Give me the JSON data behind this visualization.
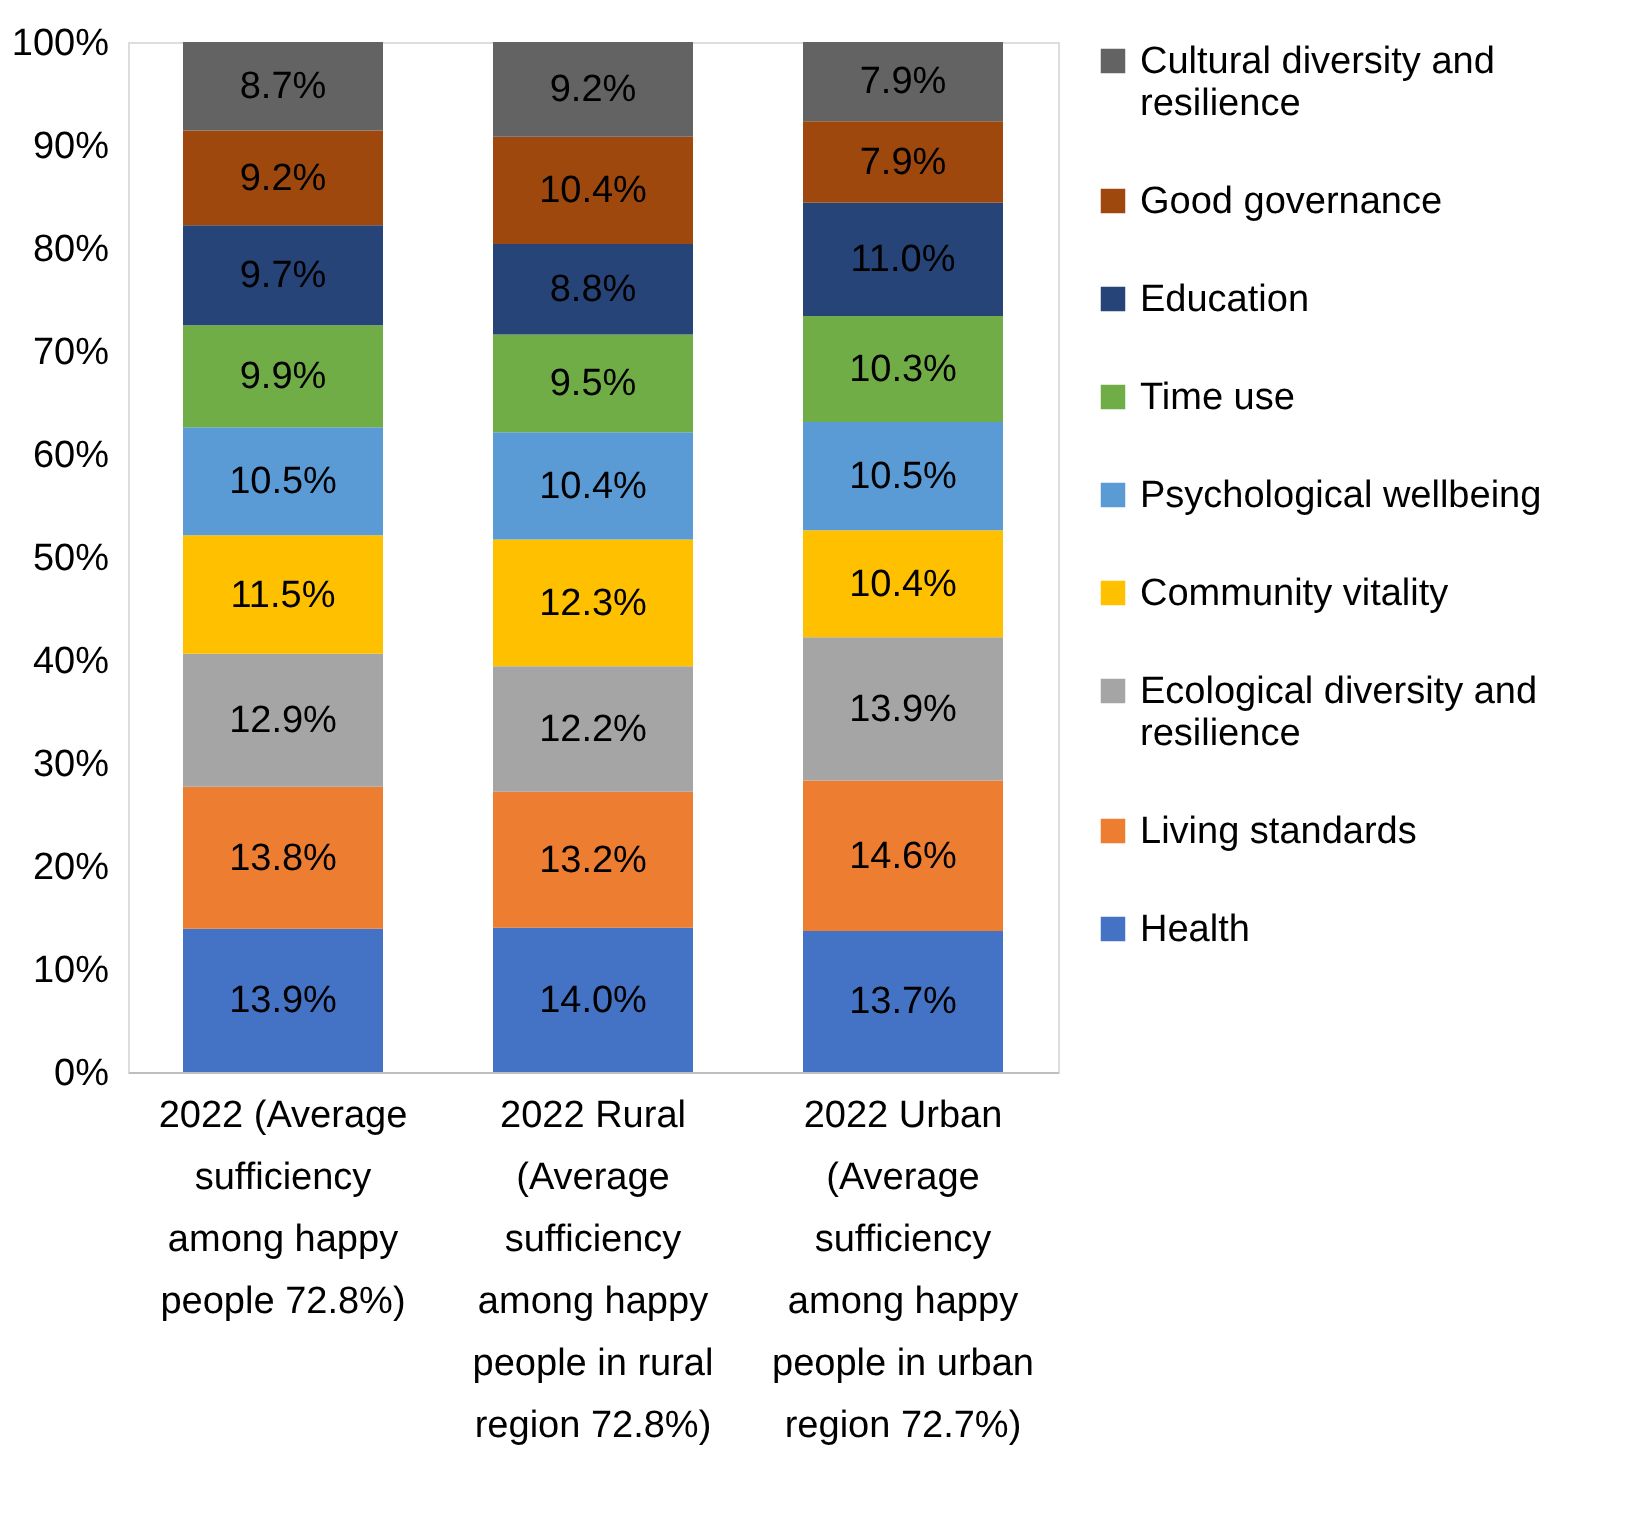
{
  "chart_data": {
    "type": "bar",
    "stacked": true,
    "categories": [
      "2022 (Average sufficiency among happy people 72.8%)",
      "2022 Rural (Average sufficiency among happy people in rural region 72.8%)",
      "2022 Urban (Average sufficiency among happy people in urban region 72.7%)"
    ],
    "series": [
      {
        "name": "Health",
        "color": "#4472c4",
        "values": [
          13.9,
          14.0,
          13.7
        ],
        "value_labels": [
          "13.9%",
          "14.0%",
          "13.7%"
        ]
      },
      {
        "name": "Living standards",
        "color": "#ed7d31",
        "values": [
          13.8,
          13.2,
          14.6
        ],
        "value_labels": [
          "13.8%",
          "13.2%",
          "14.6%"
        ]
      },
      {
        "name": "Ecological diversity and resilience",
        "color": "#a5a5a5",
        "values": [
          12.9,
          12.2,
          13.9
        ],
        "value_labels": [
          "12.9%",
          "12.2%",
          "13.9%"
        ]
      },
      {
        "name": "Community vitality",
        "color": "#ffc000",
        "values": [
          11.5,
          12.3,
          10.4
        ],
        "value_labels": [
          "11.5%",
          "12.3%",
          "10.4%"
        ]
      },
      {
        "name": "Psychological wellbeing",
        "color": "#5b9bd5",
        "values": [
          10.5,
          10.4,
          10.5
        ],
        "value_labels": [
          "10.5%",
          "10.4%",
          "10.5%"
        ]
      },
      {
        "name": "Time use",
        "color": "#70ad47",
        "values": [
          9.9,
          9.5,
          10.3
        ],
        "value_labels": [
          "9.9%",
          "9.5%",
          "10.3%"
        ]
      },
      {
        "name": "Education",
        "color": "#264478",
        "values": [
          9.7,
          8.8,
          11.0
        ],
        "value_labels": [
          "9.7%",
          "8.8%",
          "11.0%"
        ]
      },
      {
        "name": "Good governance",
        "color": "#9e480e",
        "values": [
          9.2,
          10.4,
          7.9
        ],
        "value_labels": [
          "9.2%",
          "10.4%",
          "7.9%"
        ]
      },
      {
        "name": "Cultural diversity and resilience",
        "color": "#636363",
        "values": [
          8.7,
          9.2,
          7.9
        ],
        "value_labels": [
          "8.7%",
          "9.2%",
          "7.9%"
        ]
      }
    ],
    "ylim": [
      0,
      100
    ],
    "yticks": [
      {
        "value": 0,
        "label": "0%"
      },
      {
        "value": 10,
        "label": "10%"
      },
      {
        "value": 20,
        "label": "20%"
      },
      {
        "value": 30,
        "label": "30%"
      },
      {
        "value": 40,
        "label": "40%"
      },
      {
        "value": 50,
        "label": "50%"
      },
      {
        "value": 60,
        "label": "60%"
      },
      {
        "value": 70,
        "label": "70%"
      },
      {
        "value": 80,
        "label": "80%"
      },
      {
        "value": 90,
        "label": "90%"
      },
      {
        "value": 100,
        "label": "100%"
      }
    ],
    "grid": false,
    "legend": "right"
  }
}
